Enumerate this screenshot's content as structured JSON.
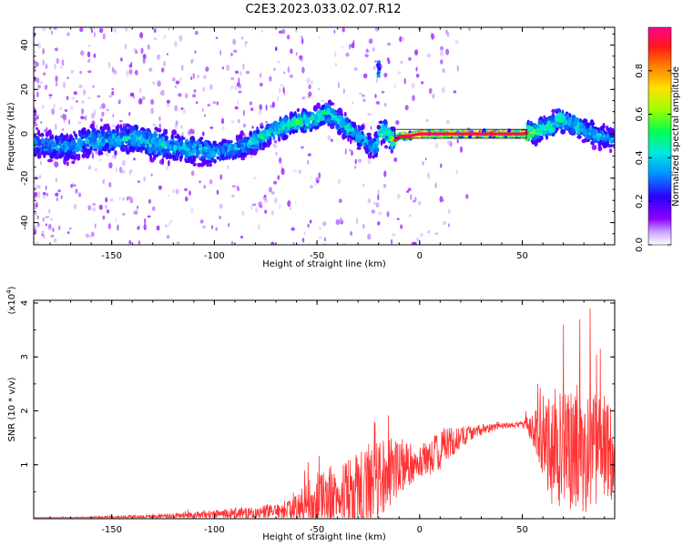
{
  "title": "C2E3.2023.033.02.07.R12",
  "chart_data": [
    {
      "type": "heatmap",
      "name": "spectrogram",
      "xlabel": "Height of straight line (km)",
      "ylabel": "Frequency (Hz)",
      "xlim": [
        -188,
        95
      ],
      "ylim": [
        -50,
        48
      ],
      "xticks": [
        -150,
        -100,
        -50,
        0,
        50
      ],
      "yticks": [
        -40,
        -20,
        0,
        20,
        40
      ],
      "colorbar": {
        "label": "Normalized spectral amplitude",
        "range": [
          0.0,
          1.0
        ],
        "ticks": [
          0.0,
          0.2,
          0.4,
          0.6,
          0.8
        ],
        "tick_labels": [
          "0.0",
          "0.2",
          "0.4",
          "0.6",
          "0.8"
        ],
        "colors": [
          "#ffffff",
          "#c9a0ff",
          "#8a00ff",
          "#2d00ff",
          "#0096ff",
          "#00e8e0",
          "#00ff50",
          "#9cff00",
          "#ffe000",
          "#ff8000",
          "#ff1a1a",
          "#ff0090"
        ]
      },
      "ridge_trace": {
        "x": [
          -185,
          -170,
          -160,
          -150,
          -140,
          -130,
          -120,
          -110,
          -100,
          -90,
          -80,
          -70,
          -60,
          -50,
          -45,
          -40,
          -35,
          -30,
          -25,
          -22,
          -20,
          -18,
          -15,
          -12,
          -10,
          -5,
          0,
          10,
          20,
          30,
          40,
          50,
          55,
          60,
          65,
          68,
          72,
          78,
          85,
          95
        ],
        "y": [
          -5,
          -6,
          -3,
          -3,
          -2,
          -4,
          -6,
          -7,
          -8,
          -7,
          -3,
          2,
          5,
          7,
          10,
          6,
          3,
          -1,
          -4,
          -7,
          -2,
          2,
          -1,
          -3,
          -1,
          -1,
          0,
          0,
          0,
          0,
          0,
          0,
          1,
          2,
          4,
          7,
          5,
          3,
          0,
          -3
        ],
        "peak_amplitude": [
          0.35,
          0.35,
          0.4,
          0.4,
          0.4,
          0.45,
          0.4,
          0.4,
          0.4,
          0.4,
          0.45,
          0.5,
          0.5,
          0.5,
          0.5,
          0.45,
          0.45,
          0.4,
          0.4,
          0.35,
          0.5,
          0.55,
          0.55,
          0.75,
          0.9,
          0.9,
          0.9,
          0.95,
          0.95,
          0.95,
          0.95,
          0.95,
          0.6,
          0.55,
          0.5,
          0.5,
          0.45,
          0.45,
          0.4,
          0.35
        ]
      },
      "isolated_feature": {
        "x": -20,
        "y_range": [
          26,
          33
        ]
      }
    },
    {
      "type": "line",
      "name": "snr",
      "xlabel": "Height of straight line (km)",
      "ylabel": "SNR (10 * v/v)",
      "y_multiplier": "(x10^4)",
      "xlim": [
        -188,
        95
      ],
      "ylim": [
        0,
        4.05
      ],
      "xticks": [
        -150,
        -100,
        -50,
        0,
        50
      ],
      "yticks": [
        1,
        2,
        3,
        4
      ],
      "color": "#ff3333",
      "series": [
        {
          "envelope_x": [
            -188,
            -160,
            -140,
            -120,
            -100,
            -90,
            -80,
            -75,
            -70,
            -65,
            -60,
            -55,
            -50,
            -45,
            -40,
            -35,
            -30,
            -25,
            -20,
            -15,
            -10,
            -5,
            0,
            5,
            10,
            15,
            20,
            30,
            40,
            50,
            55,
            60,
            65,
            70,
            75,
            80,
            85,
            90,
            95
          ],
          "baseline": [
            0.0,
            0.02,
            0.03,
            0.05,
            0.08,
            0.1,
            0.1,
            0.12,
            0.12,
            0.15,
            0.2,
            0.25,
            0.35,
            0.4,
            0.45,
            0.5,
            0.55,
            0.6,
            0.7,
            0.9,
            0.9,
            1.0,
            1.1,
            1.1,
            1.3,
            1.4,
            1.5,
            1.65,
            1.72,
            1.75,
            1.7,
            1.5,
            1.3,
            1.3,
            1.3,
            1.3,
            1.3,
            1.3,
            1.3
          ],
          "spread": [
            0.01,
            0.02,
            0.04,
            0.05,
            0.08,
            0.1,
            0.12,
            0.14,
            0.15,
            0.2,
            0.3,
            0.45,
            0.5,
            0.6,
            0.65,
            0.7,
            0.8,
            0.8,
            0.8,
            0.7,
            0.5,
            0.4,
            0.3,
            0.35,
            0.4,
            0.3,
            0.2,
            0.1,
            0.05,
            0.05,
            0.3,
            0.8,
            1.1,
            1.2,
            1.2,
            1.2,
            1.1,
            1.0,
            1.0
          ]
        }
      ],
      "peak_spikes": [
        {
          "x": -22,
          "y": 1.8
        },
        {
          "x": 70,
          "y": 3.6
        },
        {
          "x": 78,
          "y": 3.7
        },
        {
          "x": 83,
          "y": 3.9
        },
        {
          "x": 88,
          "y": 3.15
        }
      ]
    }
  ]
}
